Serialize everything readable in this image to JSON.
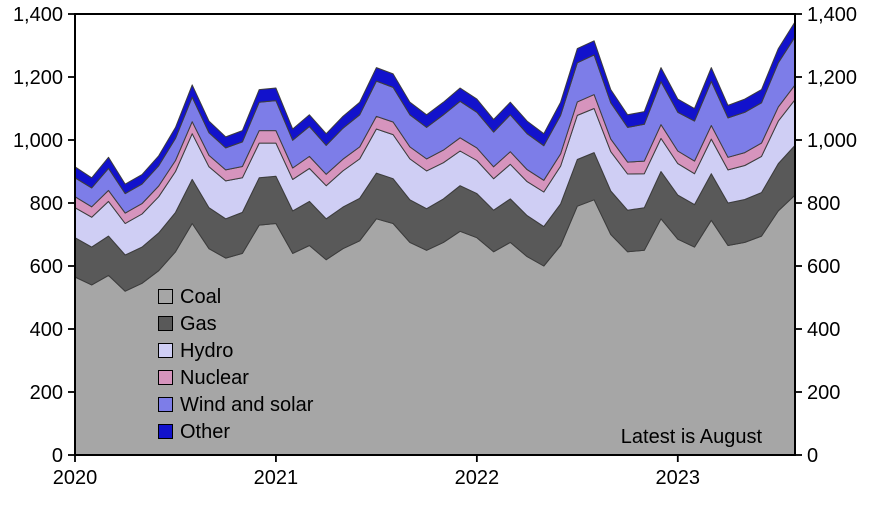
{
  "figure": {
    "annotation": "Latest is August"
  },
  "chart_data": {
    "type": "area",
    "stacked": true,
    "title": "",
    "xlabel": "",
    "ylabel": "",
    "ylim": [
      0,
      1400
    ],
    "y_tick_values": [
      0,
      200,
      400,
      600,
      800,
      1000,
      1200,
      1400
    ],
    "y_tick_labels": [
      "0",
      "200",
      "400",
      "600",
      "800",
      "1,000",
      "1,200",
      "1,400"
    ],
    "x_tick_labels": [
      "2020",
      "2021",
      "2022",
      "2023"
    ],
    "x_tick_month_index": [
      0,
      12,
      24,
      36
    ],
    "legend_position": "inside-bottom-left",
    "grid": false,
    "months": [
      "2020-01",
      "2020-02",
      "2020-03",
      "2020-04",
      "2020-05",
      "2020-06",
      "2020-07",
      "2020-08",
      "2020-09",
      "2020-10",
      "2020-11",
      "2020-12",
      "2021-01",
      "2021-02",
      "2021-03",
      "2021-04",
      "2021-05",
      "2021-06",
      "2021-07",
      "2021-08",
      "2021-09",
      "2021-10",
      "2021-11",
      "2021-12",
      "2022-01",
      "2022-02",
      "2022-03",
      "2022-04",
      "2022-05",
      "2022-06",
      "2022-07",
      "2022-08",
      "2022-09",
      "2022-10",
      "2022-11",
      "2022-12",
      "2023-01",
      "2023-02",
      "2023-03",
      "2023-04",
      "2023-05",
      "2023-06",
      "2023-07",
      "2023-08"
    ],
    "series": [
      {
        "name": "Coal",
        "color": "#a6a6a6",
        "values": [
          565,
          540,
          570,
          520,
          545,
          585,
          645,
          735,
          655,
          625,
          640,
          730,
          735,
          640,
          665,
          620,
          655,
          680,
          750,
          735,
          675,
          650,
          675,
          710,
          690,
          645,
          675,
          630,
          600,
          665,
          790,
          810,
          700,
          645,
          650,
          750,
          685,
          660,
          745,
          665,
          675,
          695,
          775,
          825
        ]
      },
      {
        "name": "Gas",
        "color": "#595959",
        "values": [
          125,
          120,
          125,
          115,
          115,
          120,
          125,
          140,
          130,
          125,
          130,
          150,
          150,
          135,
          140,
          130,
          132,
          135,
          145,
          142,
          135,
          132,
          138,
          145,
          140,
          132,
          138,
          130,
          125,
          132,
          148,
          150,
          138,
          132,
          135,
          150,
          140,
          135,
          148,
          135,
          136,
          138,
          150,
          158
        ]
      },
      {
        "name": "Hydro",
        "color": "#cfcef4",
        "values": [
          95,
          95,
          110,
          100,
          105,
          115,
          130,
          145,
          130,
          120,
          110,
          110,
          105,
          100,
          105,
          105,
          115,
          125,
          140,
          140,
          130,
          120,
          115,
          110,
          105,
          100,
          110,
          108,
          110,
          120,
          140,
          140,
          125,
          115,
          108,
          105,
          100,
          98,
          110,
          105,
          108,
          115,
          135,
          145
        ]
      },
      {
        "name": "Nuclear",
        "color": "#d694bd",
        "values": [
          35,
          33,
          35,
          33,
          33,
          34,
          35,
          38,
          36,
          35,
          36,
          40,
          40,
          36,
          38,
          36,
          37,
          38,
          40,
          40,
          38,
          38,
          40,
          42,
          40,
          38,
          40,
          38,
          37,
          39,
          43,
          44,
          40,
          38,
          40,
          44,
          40,
          40,
          43,
          40,
          41,
          42,
          45,
          47
        ]
      },
      {
        "name": "Wind and solar",
        "color": "#7d7de8",
        "values": [
          60,
          60,
          70,
          62,
          62,
          64,
          70,
          78,
          72,
          70,
          78,
          90,
          95,
          88,
          95,
          92,
          98,
          102,
          112,
          110,
          102,
          100,
          112,
          116,
          113,
          110,
          117,
          114,
          110,
          122,
          124,
          126,
          115,
          110,
          117,
          136,
          123,
          127,
          140,
          125,
          128,
          128,
          140,
          152
        ]
      },
      {
        "name": "Other",
        "color": "#1212cc",
        "values": [
          35,
          32,
          35,
          30,
          30,
          32,
          35,
          39,
          37,
          35,
          36,
          40,
          40,
          36,
          37,
          37,
          38,
          40,
          43,
          43,
          40,
          40,
          40,
          42,
          42,
          40,
          40,
          40,
          38,
          42,
          45,
          45,
          42,
          40,
          40,
          45,
          42,
          40,
          44,
          40,
          42,
          42,
          45,
          48
        ]
      }
    ],
    "annotation": "Latest is August"
  }
}
